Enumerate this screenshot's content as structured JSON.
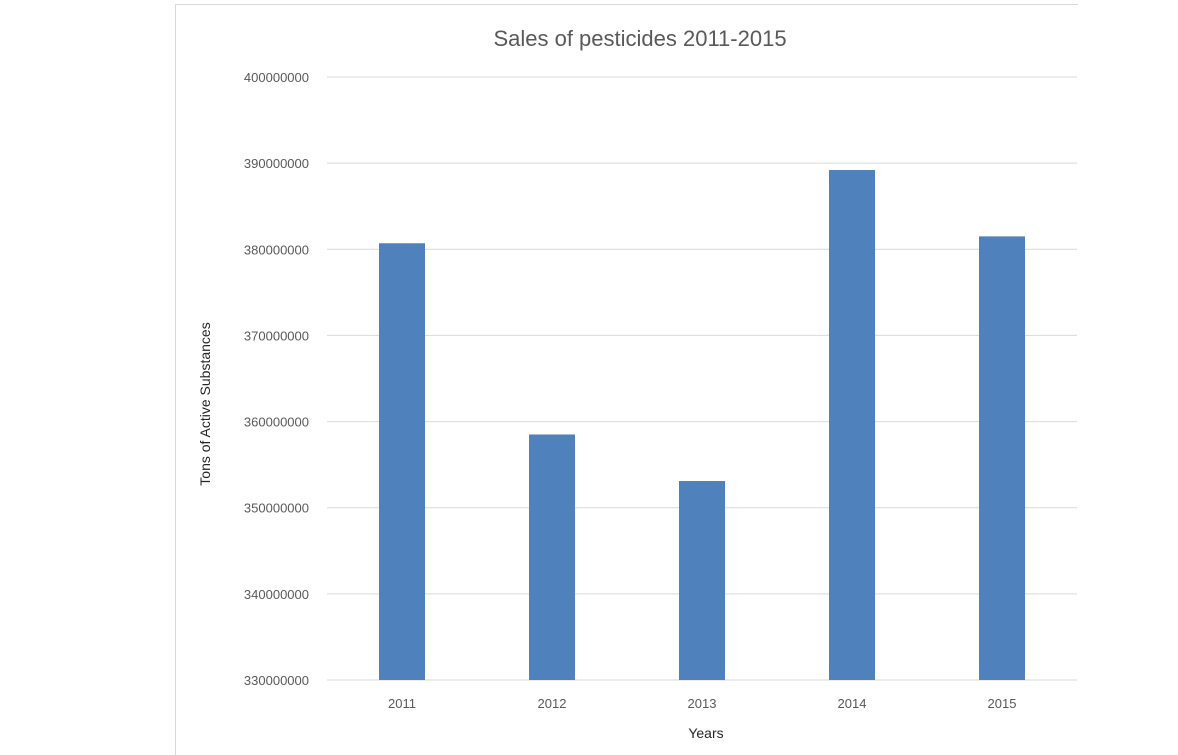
{
  "chart_data": {
    "type": "bar",
    "title": "Sales of pesticides 2011-2015",
    "xlabel": "Years",
    "ylabel": "Tons of Active Substances",
    "categories": [
      "2011",
      "2012",
      "2013",
      "2014",
      "2015"
    ],
    "values": [
      380700000,
      358500000,
      353100000,
      389200000,
      381500000
    ],
    "ylim": [
      330000000,
      400000000
    ],
    "yticks": [
      "330000000",
      "340000000",
      "350000000",
      "360000000",
      "370000000",
      "380000000",
      "390000000",
      "400000000"
    ],
    "grid": true,
    "legend": "none",
    "bar_color": "#4f81bd"
  }
}
